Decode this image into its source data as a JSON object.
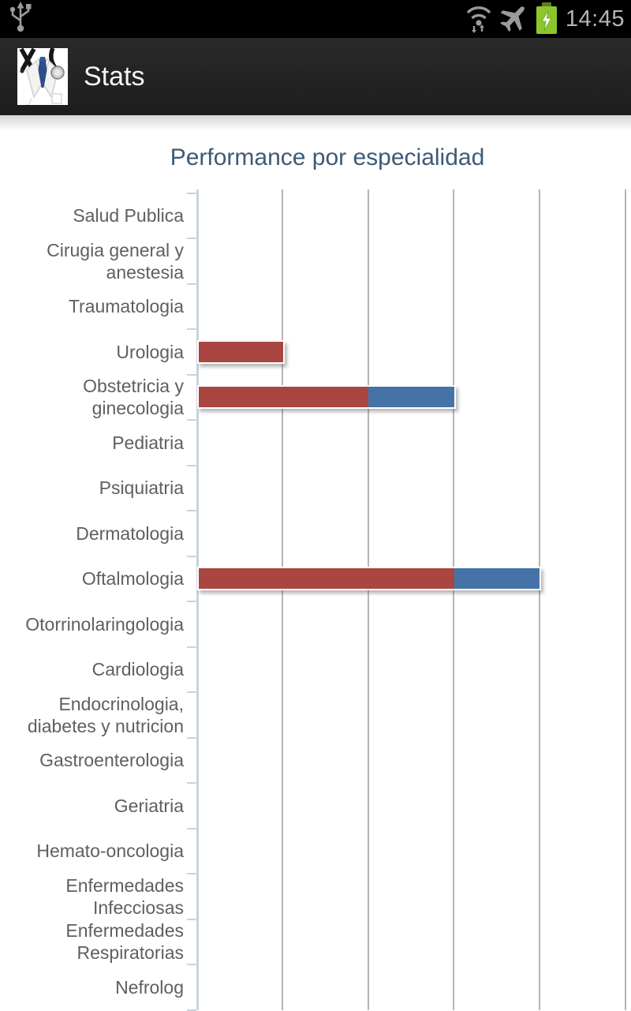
{
  "status_bar": {
    "time": "14:45",
    "icons": [
      "usb-icon",
      "wifi-icon",
      "airplane-mode-icon",
      "battery-charging-icon"
    ],
    "battery_color": "#8cc62c",
    "icon_color": "#9b9b9b"
  },
  "app_bar": {
    "title": "Stats",
    "icon": "doctor-app-icon",
    "background": "#222222"
  },
  "chart_data": {
    "type": "bar",
    "orientation": "horizontal",
    "stacked": true,
    "title": "Performance por especialidad",
    "title_color": "#3d5a76",
    "categories": [
      "Salud Publica",
      "Cirugia general y anestesia",
      "Traumatologia",
      "Urologia",
      "Obstetricia y ginecologia",
      "Pediatria",
      "Psiquiatria",
      "Dermatologia",
      "Oftalmologia",
      "Otorrinolaringologia",
      "Cardiologia",
      "Endocrinologia, diabetes y nutricion",
      "Gastroenterologia",
      "Geriatria",
      "Hemato-oncologia",
      "Enfermedades Infecciosas",
      "Enfermedades Respiratorias",
      "Nefrolog"
    ],
    "series": [
      {
        "name": "red",
        "color": "#a94642",
        "values": [
          0,
          0,
          0,
          1,
          2,
          0,
          0,
          0,
          3,
          0,
          0,
          0,
          0,
          0,
          0,
          0,
          0,
          0
        ]
      },
      {
        "name": "blue",
        "color": "#4573a7",
        "values": [
          0,
          0,
          0,
          0,
          1,
          0,
          0,
          0,
          1,
          0,
          0,
          0,
          0,
          0,
          0,
          0,
          0,
          0
        ]
      }
    ],
    "xlim": [
      0,
      5
    ],
    "x_gridlines": 5,
    "grid_color": "#b5b5b5",
    "axis_color": "#c9d3dc",
    "legend": "none",
    "value_labels": "none"
  }
}
